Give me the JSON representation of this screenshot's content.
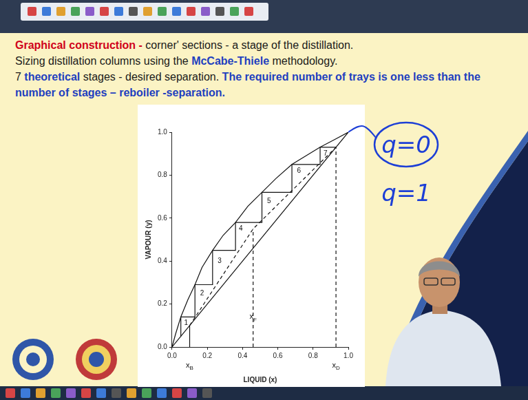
{
  "slide": {
    "lines": [
      [
        {
          "text": "Graphical construction - ",
          "color": "#d0021b",
          "emphasis": true
        },
        {
          "text": "corner' sections - a stage of the distillation.",
          "color": "#1a1a1a",
          "emphasis": false
        }
      ],
      [
        {
          "text": "Sizing distillation columns using the ",
          "color": "#1a1a1a",
          "emphasis": false
        },
        {
          "text": "McCabe-Thiele",
          "color": "#1f3fbf",
          "emphasis": true
        },
        {
          "text": " methodology.",
          "color": "#1a1a1a",
          "emphasis": false
        }
      ],
      [
        {
          "text": "7 ",
          "color": "#1a1a1a",
          "emphasis": false
        },
        {
          "text": "theoretical",
          "color": "#1f3fbf",
          "emphasis": true
        },
        {
          "text": " stages - desired separation. ",
          "color": "#1a1a1a",
          "emphasis": false
        },
        {
          "text": "The required number of trays is one less than the number of stages – reboiler -separation.",
          "color": "#1f3fbf",
          "emphasis": true
        }
      ]
    ],
    "handwriting": [
      {
        "text": "q=0",
        "circled": true
      },
      {
        "text": "q=1",
        "circled": false
      }
    ]
  },
  "chart_data": {
    "type": "line",
    "x_label": "LIQUID (x)",
    "y_label": "VAPOUR (y)",
    "xlim": [
      0,
      1
    ],
    "ylim": [
      0,
      1
    ],
    "xticks": [
      {
        "value": 0,
        "label": "0.0"
      },
      0.2,
      0.4,
      0.6,
      0.8,
      {
        "value": 1,
        "label": "1.0"
      }
    ],
    "yticks": [
      {
        "value": 0,
        "label": "0.0"
      },
      0.2,
      0.4,
      0.6,
      0.8,
      {
        "value": 1,
        "label": "1.0"
      }
    ],
    "grid": false,
    "series": [
      {
        "color": "#111111",
        "line_style": "solid",
        "points": [
          [
            0,
            0
          ],
          [
            0.02,
            0.06
          ],
          [
            0.05,
            0.14
          ],
          [
            0.09,
            0.22
          ],
          [
            0.13,
            0.29
          ],
          [
            0.17,
            0.37
          ],
          [
            0.23,
            0.45
          ],
          [
            0.29,
            0.52
          ],
          [
            0.36,
            0.58
          ],
          [
            0.43,
            0.655
          ],
          [
            0.51,
            0.72
          ],
          [
            0.59,
            0.785
          ],
          [
            0.68,
            0.85
          ],
          [
            0.76,
            0.89
          ],
          [
            0.84,
            0.93
          ],
          [
            0.92,
            0.965
          ],
          [
            1,
            1
          ]
        ]
      },
      {
        "color": "#111111",
        "line_style": "solid",
        "points": [
          [
            0,
            0
          ],
          [
            1,
            1
          ]
        ]
      },
      {
        "color": "#111111",
        "line_style": "dashed",
        "points": [
          [
            0.1,
            0.1
          ],
          [
            0.46,
            0.55
          ],
          [
            0.93,
            0.93
          ]
        ]
      },
      {
        "color": "#111111",
        "line_style": "solid",
        "points": [
          [
            0.93,
            0.93
          ],
          [
            0.84,
            0.93
          ],
          [
            0.84,
            0.85
          ],
          [
            0.68,
            0.85
          ],
          [
            0.68,
            0.72
          ],
          [
            0.51,
            0.72
          ],
          [
            0.51,
            0.58
          ],
          [
            0.36,
            0.58
          ],
          [
            0.36,
            0.45
          ],
          [
            0.23,
            0.45
          ],
          [
            0.23,
            0.29
          ],
          [
            0.13,
            0.29
          ],
          [
            0.13,
            0.14
          ],
          [
            0.05,
            0.14
          ],
          [
            0.05,
            0.05
          ]
        ]
      },
      {
        "color": "#111111",
        "line_style": "dashed",
        "points": [
          [
            0.46,
            0
          ],
          [
            0.46,
            0.55
          ]
        ]
      },
      {
        "color": "#111111",
        "line_style": "dashed",
        "points": [
          [
            0.93,
            0
          ],
          [
            0.93,
            0.93
          ]
        ]
      },
      {
        "color": "#111111",
        "line_style": "solid",
        "points": [
          [
            0.1,
            0
          ],
          [
            0.1,
            0.1
          ]
        ]
      }
    ],
    "stage_labels": [
      {
        "text": "1",
        "x": 0.08,
        "y": 0.11
      },
      {
        "text": "2",
        "x": 0.17,
        "y": 0.25
      },
      {
        "text": "3",
        "x": 0.27,
        "y": 0.4
      },
      {
        "text": "4",
        "x": 0.39,
        "y": 0.55
      },
      {
        "text": "5",
        "x": 0.55,
        "y": 0.68
      },
      {
        "text": "6",
        "x": 0.72,
        "y": 0.82
      },
      {
        "text": "7",
        "x": 0.87,
        "y": 0.9
      }
    ],
    "axis_markers": [
      {
        "text": "x",
        "sub": "B",
        "x": 0.1
      },
      {
        "text": "x",
        "sub": "F",
        "x": 0.46,
        "y": 0.14
      },
      {
        "text": "x",
        "sub": "D",
        "x": 0.93
      }
    ]
  }
}
